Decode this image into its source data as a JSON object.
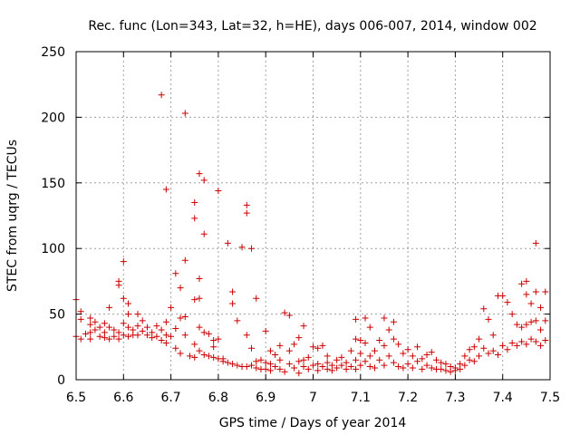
{
  "chart_data": {
    "type": "scatter",
    "title": "Rec. func (Lon=343, Lat=32, h=HE), days 006-007, 2014, window 002",
    "xlabel": "GPS time / Days of year 2014",
    "ylabel": "STEC from uqrg / TECUs",
    "xlim": [
      6.5,
      7.5
    ],
    "ylim": [
      0,
      250
    ],
    "xticks": [
      "6.5",
      "6.6",
      "6.7",
      "6.8",
      "6.9",
      "7",
      "7.1",
      "7.2",
      "7.3",
      "7.4",
      "7.5"
    ],
    "yticks": [
      "0",
      "50",
      "100",
      "150",
      "200",
      "250"
    ],
    "grid": true,
    "marker": "+",
    "color": "#cc0000",
    "series": [
      {
        "name": "STEC",
        "points": [
          [
            6.5,
            61
          ],
          [
            6.5,
            33
          ],
          [
            6.51,
            52
          ],
          [
            6.51,
            46
          ],
          [
            6.51,
            31
          ],
          [
            6.52,
            35
          ],
          [
            6.53,
            47
          ],
          [
            6.53,
            42
          ],
          [
            6.53,
            36
          ],
          [
            6.53,
            31
          ],
          [
            6.54,
            44
          ],
          [
            6.54,
            38
          ],
          [
            6.55,
            40
          ],
          [
            6.55,
            33
          ],
          [
            6.56,
            43
          ],
          [
            6.56,
            36
          ],
          [
            6.56,
            32
          ],
          [
            6.57,
            55
          ],
          [
            6.57,
            40
          ],
          [
            6.57,
            31
          ],
          [
            6.58,
            38
          ],
          [
            6.58,
            33
          ],
          [
            6.59,
            75
          ],
          [
            6.59,
            72
          ],
          [
            6.59,
            36
          ],
          [
            6.59,
            31
          ],
          [
            6.6,
            90
          ],
          [
            6.6,
            62
          ],
          [
            6.6,
            43
          ],
          [
            6.6,
            34
          ],
          [
            6.61,
            58
          ],
          [
            6.61,
            50
          ],
          [
            6.61,
            40
          ],
          [
            6.61,
            33
          ],
          [
            6.62,
            38
          ],
          [
            6.62,
            34
          ],
          [
            6.63,
            50
          ],
          [
            6.63,
            41
          ],
          [
            6.63,
            34
          ],
          [
            6.64,
            45
          ],
          [
            6.64,
            37
          ],
          [
            6.65,
            40
          ],
          [
            6.65,
            34
          ],
          [
            6.66,
            36
          ],
          [
            6.66,
            32
          ],
          [
            6.67,
            41
          ],
          [
            6.67,
            33
          ],
          [
            6.68,
            217
          ],
          [
            6.68,
            38
          ],
          [
            6.68,
            30
          ],
          [
            6.69,
            145
          ],
          [
            6.69,
            44
          ],
          [
            6.69,
            34
          ],
          [
            6.69,
            28
          ],
          [
            6.7,
            55
          ],
          [
            6.7,
            33
          ],
          [
            6.71,
            81
          ],
          [
            6.71,
            39
          ],
          [
            6.71,
            24
          ],
          [
            6.72,
            70
          ],
          [
            6.72,
            47
          ],
          [
            6.72,
            20
          ],
          [
            6.73,
            203
          ],
          [
            6.73,
            91
          ],
          [
            6.73,
            48
          ],
          [
            6.73,
            34
          ],
          [
            6.74,
            18
          ],
          [
            6.75,
            135
          ],
          [
            6.75,
            123
          ],
          [
            6.75,
            61
          ],
          [
            6.75,
            27
          ],
          [
            6.75,
            17
          ],
          [
            6.76,
            157
          ],
          [
            6.76,
            77
          ],
          [
            6.76,
            62
          ],
          [
            6.76,
            40
          ],
          [
            6.76,
            22
          ],
          [
            6.77,
            152
          ],
          [
            6.77,
            111
          ],
          [
            6.77,
            36
          ],
          [
            6.77,
            19
          ],
          [
            6.78,
            35
          ],
          [
            6.78,
            18
          ],
          [
            6.79,
            30
          ],
          [
            6.79,
            25
          ],
          [
            6.79,
            17
          ],
          [
            6.8,
            144
          ],
          [
            6.8,
            31
          ],
          [
            6.8,
            16
          ],
          [
            6.81,
            16
          ],
          [
            6.81,
            14
          ],
          [
            6.82,
            104
          ],
          [
            6.82,
            13
          ],
          [
            6.83,
            67
          ],
          [
            6.83,
            58
          ],
          [
            6.83,
            12
          ],
          [
            6.84,
            45
          ],
          [
            6.84,
            11
          ],
          [
            6.85,
            101
          ],
          [
            6.85,
            10
          ],
          [
            6.86,
            133
          ],
          [
            6.86,
            127
          ],
          [
            6.86,
            34
          ],
          [
            6.86,
            10
          ],
          [
            6.87,
            100
          ],
          [
            6.87,
            24
          ],
          [
            6.87,
            11
          ],
          [
            6.88,
            62
          ],
          [
            6.88,
            14
          ],
          [
            6.88,
            9
          ],
          [
            6.89,
            15
          ],
          [
            6.89,
            8
          ],
          [
            6.9,
            37
          ],
          [
            6.9,
            13
          ],
          [
            6.9,
            8
          ],
          [
            6.91,
            22
          ],
          [
            6.91,
            12
          ],
          [
            6.91,
            7
          ],
          [
            6.92,
            19
          ],
          [
            6.92,
            10
          ],
          [
            6.93,
            26
          ],
          [
            6.93,
            15
          ],
          [
            6.93,
            8
          ],
          [
            6.94,
            51
          ],
          [
            6.94,
            6
          ],
          [
            6.95,
            49
          ],
          [
            6.95,
            22
          ],
          [
            6.95,
            12
          ],
          [
            6.96,
            27
          ],
          [
            6.96,
            9
          ],
          [
            6.97,
            32
          ],
          [
            6.97,
            14
          ],
          [
            6.97,
            5
          ],
          [
            6.98,
            41
          ],
          [
            6.98,
            15
          ],
          [
            6.98,
            10
          ],
          [
            6.99,
            17
          ],
          [
            6.99,
            8
          ],
          [
            7.0,
            25
          ],
          [
            7.0,
            11
          ],
          [
            7.01,
            24
          ],
          [
            7.01,
            12
          ],
          [
            7.01,
            7
          ],
          [
            7.02,
            26
          ],
          [
            7.02,
            10
          ],
          [
            7.03,
            18
          ],
          [
            7.03,
            13
          ],
          [
            7.03,
            8
          ],
          [
            7.04,
            11
          ],
          [
            7.04,
            7
          ],
          [
            7.05,
            15
          ],
          [
            7.05,
            9
          ],
          [
            7.06,
            17
          ],
          [
            7.06,
            11
          ],
          [
            7.07,
            13
          ],
          [
            7.07,
            8
          ],
          [
            7.08,
            22
          ],
          [
            7.08,
            10
          ],
          [
            7.09,
            46
          ],
          [
            7.09,
            31
          ],
          [
            7.09,
            15
          ],
          [
            7.09,
            8
          ],
          [
            7.1,
            30
          ],
          [
            7.1,
            20
          ],
          [
            7.1,
            11
          ],
          [
            7.11,
            47
          ],
          [
            7.11,
            28
          ],
          [
            7.11,
            14
          ],
          [
            7.12,
            40
          ],
          [
            7.12,
            18
          ],
          [
            7.12,
            10
          ],
          [
            7.13,
            22
          ],
          [
            7.13,
            9
          ],
          [
            7.14,
            30
          ],
          [
            7.14,
            15
          ],
          [
            7.15,
            47
          ],
          [
            7.15,
            26
          ],
          [
            7.15,
            11
          ],
          [
            7.16,
            38
          ],
          [
            7.16,
            18
          ],
          [
            7.17,
            44
          ],
          [
            7.17,
            31
          ],
          [
            7.17,
            13
          ],
          [
            7.18,
            27
          ],
          [
            7.18,
            10
          ],
          [
            7.19,
            20
          ],
          [
            7.19,
            9
          ],
          [
            7.2,
            23
          ],
          [
            7.2,
            12
          ],
          [
            7.21,
            18
          ],
          [
            7.21,
            9
          ],
          [
            7.22,
            25
          ],
          [
            7.22,
            14
          ],
          [
            7.23,
            16
          ],
          [
            7.23,
            8
          ],
          [
            7.24,
            19
          ],
          [
            7.24,
            11
          ],
          [
            7.25,
            21
          ],
          [
            7.25,
            9
          ],
          [
            7.26,
            15
          ],
          [
            7.26,
            8
          ],
          [
            7.27,
            13
          ],
          [
            7.27,
            8
          ],
          [
            7.28,
            12
          ],
          [
            7.28,
            7
          ],
          [
            7.29,
            10
          ],
          [
            7.29,
            6
          ],
          [
            7.3,
            9
          ],
          [
            7.3,
            7
          ],
          [
            7.31,
            12
          ],
          [
            7.31,
            8
          ],
          [
            7.32,
            18
          ],
          [
            7.32,
            11
          ],
          [
            7.33,
            23
          ],
          [
            7.33,
            15
          ],
          [
            7.34,
            25
          ],
          [
            7.34,
            14
          ],
          [
            7.35,
            31
          ],
          [
            7.35,
            18
          ],
          [
            7.36,
            54
          ],
          [
            7.36,
            24
          ],
          [
            7.37,
            46
          ],
          [
            7.37,
            20
          ],
          [
            7.38,
            34
          ],
          [
            7.38,
            22
          ],
          [
            7.39,
            64
          ],
          [
            7.39,
            19
          ],
          [
            7.4,
            64
          ],
          [
            7.4,
            26
          ],
          [
            7.41,
            59
          ],
          [
            7.41,
            23
          ],
          [
            7.42,
            50
          ],
          [
            7.42,
            28
          ],
          [
            7.43,
            42
          ],
          [
            7.43,
            26
          ],
          [
            7.44,
            73
          ],
          [
            7.44,
            40
          ],
          [
            7.44,
            29
          ],
          [
            7.45,
            75
          ],
          [
            7.45,
            65
          ],
          [
            7.45,
            42
          ],
          [
            7.45,
            27
          ],
          [
            7.46,
            58
          ],
          [
            7.46,
            44
          ],
          [
            7.46,
            31
          ],
          [
            7.47,
            104
          ],
          [
            7.47,
            67
          ],
          [
            7.47,
            45
          ],
          [
            7.47,
            29
          ],
          [
            7.48,
            55
          ],
          [
            7.48,
            38
          ],
          [
            7.48,
            26
          ],
          [
            7.49,
            67
          ],
          [
            7.49,
            45
          ],
          [
            7.49,
            30
          ]
        ]
      }
    ]
  }
}
